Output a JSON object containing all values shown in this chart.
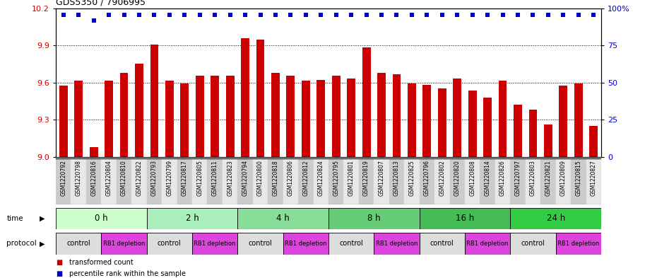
{
  "title": "GDS5350 / 7906995",
  "samples": [
    "GSM1220792",
    "GSM1220798",
    "GSM1220816",
    "GSM1220804",
    "GSM1220810",
    "GSM1220822",
    "GSM1220793",
    "GSM1220799",
    "GSM1220817",
    "GSM1220805",
    "GSM1220811",
    "GSM1220823",
    "GSM1220794",
    "GSM1220800",
    "GSM1220818",
    "GSM1220806",
    "GSM1220812",
    "GSM1220824",
    "GSM1220795",
    "GSM1220801",
    "GSM1220819",
    "GSM1220807",
    "GSM1220813",
    "GSM1220825",
    "GSM1220796",
    "GSM1220802",
    "GSM1220820",
    "GSM1220808",
    "GSM1220814",
    "GSM1220826",
    "GSM1220797",
    "GSM1220803",
    "GSM1220821",
    "GSM1220809",
    "GSM1220815",
    "GSM1220827"
  ],
  "bar_values": [
    9.575,
    9.615,
    9.08,
    9.615,
    9.68,
    9.755,
    9.905,
    9.615,
    9.595,
    9.655,
    9.655,
    9.655,
    9.96,
    9.945,
    9.68,
    9.655,
    9.615,
    9.625,
    9.655,
    9.635,
    9.885,
    9.68,
    9.67,
    9.595,
    9.58,
    9.555,
    9.635,
    9.535,
    9.48,
    9.615,
    9.42,
    9.38,
    9.265,
    9.575,
    9.595,
    9.25
  ],
  "percentile_y": [
    10.15,
    10.15,
    10.1,
    10.15,
    10.15,
    10.15,
    10.15,
    10.15,
    10.15,
    10.15,
    10.15,
    10.15,
    10.15,
    10.15,
    10.15,
    10.15,
    10.15,
    10.15,
    10.15,
    10.15,
    10.15,
    10.15,
    10.15,
    10.15,
    10.15,
    10.15,
    10.15,
    10.15,
    10.15,
    10.15,
    10.15,
    10.15,
    10.15,
    10.15,
    10.15,
    10.15
  ],
  "bar_color": "#cc0000",
  "percentile_color": "#0000cc",
  "ylim_left": [
    9.0,
    10.2
  ],
  "yticks_left": [
    9.0,
    9.3,
    9.6,
    9.9,
    10.2
  ],
  "ylim_right": [
    0,
    100
  ],
  "yticks_right": [
    0,
    25,
    50,
    75,
    100
  ],
  "time_groups": [
    {
      "label": "0 h",
      "start": 0,
      "end": 6,
      "color": "#ccffcc"
    },
    {
      "label": "2 h",
      "start": 6,
      "end": 12,
      "color": "#aaeebb"
    },
    {
      "label": "4 h",
      "start": 12,
      "end": 18,
      "color": "#88dd99"
    },
    {
      "label": "8 h",
      "start": 18,
      "end": 24,
      "color": "#66cc77"
    },
    {
      "label": "16 h",
      "start": 24,
      "end": 30,
      "color": "#44bb55"
    },
    {
      "label": "24 h",
      "start": 30,
      "end": 36,
      "color": "#33cc44"
    }
  ],
  "protocol_groups": [
    {
      "label": "control",
      "start": 0,
      "end": 3,
      "color": "#dddddd"
    },
    {
      "label": "RB1 depletion",
      "start": 3,
      "end": 6,
      "color": "#dd44dd"
    },
    {
      "label": "control",
      "start": 6,
      "end": 9,
      "color": "#dddddd"
    },
    {
      "label": "RB1 depletion",
      "start": 9,
      "end": 12,
      "color": "#dd44dd"
    },
    {
      "label": "control",
      "start": 12,
      "end": 15,
      "color": "#dddddd"
    },
    {
      "label": "RB1 depletion",
      "start": 15,
      "end": 18,
      "color": "#dd44dd"
    },
    {
      "label": "control",
      "start": 18,
      "end": 21,
      "color": "#dddddd"
    },
    {
      "label": "RB1 depletion",
      "start": 21,
      "end": 24,
      "color": "#dd44dd"
    },
    {
      "label": "control",
      "start": 24,
      "end": 27,
      "color": "#dddddd"
    },
    {
      "label": "RB1 depletion",
      "start": 27,
      "end": 30,
      "color": "#dd44dd"
    },
    {
      "label": "control",
      "start": 30,
      "end": 33,
      "color": "#dddddd"
    },
    {
      "label": "RB1 depletion",
      "start": 33,
      "end": 36,
      "color": "#dd44dd"
    }
  ]
}
